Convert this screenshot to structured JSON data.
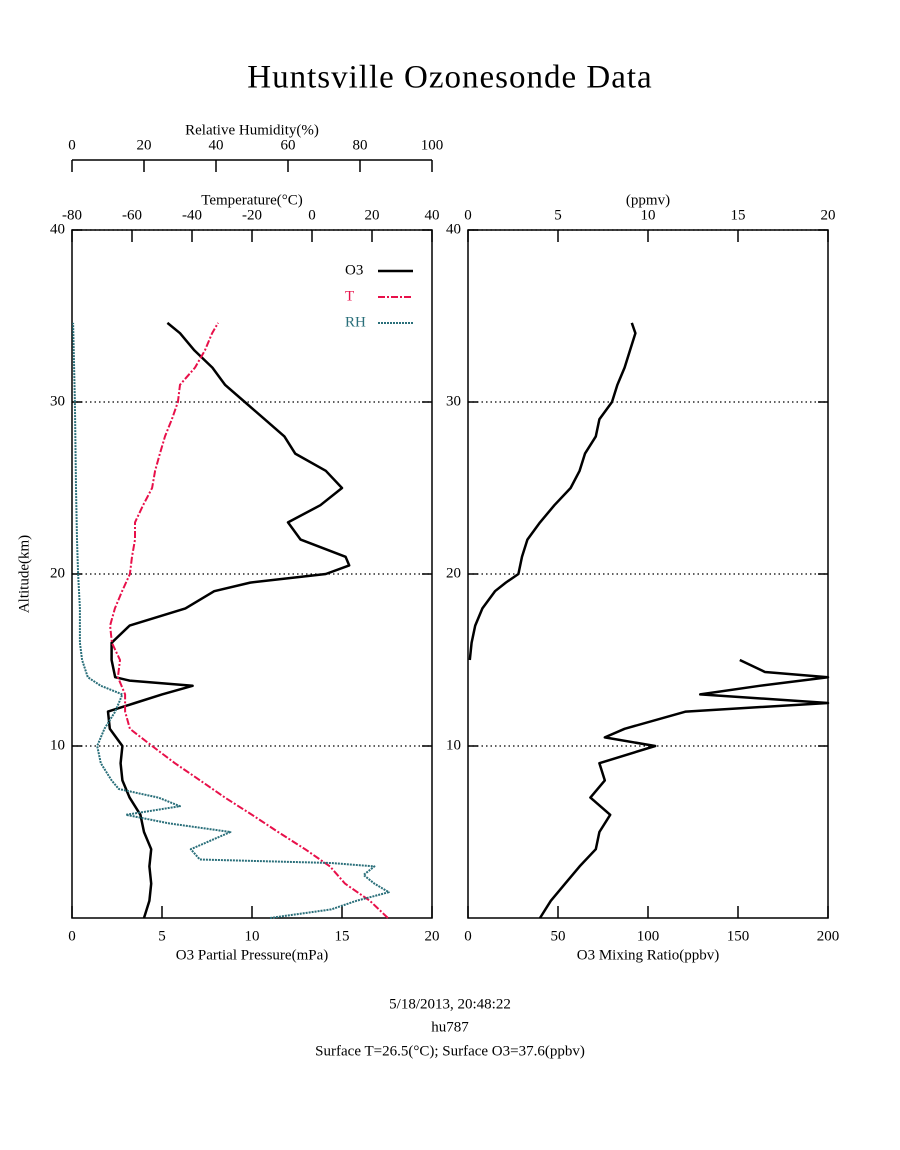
{
  "chart_data": [
    {
      "type": "line",
      "title": "Huntsville Ozonesonde Data",
      "ylabel": "Altitude(km)",
      "ylim": [
        0,
        40
      ],
      "yticks": [
        10,
        20,
        30,
        40
      ],
      "grid": true,
      "legend": "upper right",
      "x_axes": [
        {
          "label": "O3 Partial Pressure(mPa)",
          "xlim": [
            0,
            20
          ],
          "xticks": [
            0,
            5,
            10,
            15,
            20
          ]
        },
        {
          "label": "Temperature(°C)",
          "xlim": [
            -80,
            40
          ],
          "xticks": [
            -80,
            -60,
            -40,
            -20,
            0,
            20,
            40
          ]
        },
        {
          "label": "Relative Humidity(%)",
          "xlim": [
            0,
            100
          ],
          "xticks": [
            0,
            20,
            40,
            60,
            80,
            100
          ]
        }
      ],
      "series": [
        {
          "name": "O3",
          "color": "#000000",
          "axis": 0,
          "y": [
            0,
            1,
            2,
            3,
            4,
            5,
            6,
            7,
            8,
            9,
            10,
            11,
            12,
            12.5,
            13,
            13.5,
            13.8,
            14,
            15,
            16,
            17,
            18,
            19,
            19.5,
            20,
            20.5,
            21,
            22,
            23,
            24,
            25,
            26,
            27,
            28,
            29,
            30,
            31,
            32,
            33,
            34,
            34.6
          ],
          "values": [
            4.0,
            4.3,
            4.4,
            4.3,
            4.4,
            4.0,
            3.8,
            3.2,
            2.8,
            2.7,
            2.8,
            2.1,
            2.0,
            3.5,
            5.0,
            6.7,
            3.2,
            2.4,
            2.2,
            2.2,
            3.2,
            6.3,
            7.9,
            9.9,
            14.1,
            15.4,
            15.2,
            12.7,
            12.0,
            13.8,
            15.0,
            14.1,
            12.4,
            11.8,
            10.7,
            9.6,
            8.5,
            7.8,
            6.8,
            6.0,
            5.3
          ]
        },
        {
          "name": "T",
          "color": "#e8104a",
          "axis": 1,
          "y": [
            0,
            1,
            2,
            3,
            4,
            5,
            6,
            7,
            8,
            9,
            10,
            11,
            12,
            13,
            14,
            15,
            16,
            17,
            18,
            19,
            20,
            21,
            22,
            23,
            24,
            25,
            26,
            27,
            28,
            29,
            30,
            31,
            32,
            33,
            34,
            34.6
          ],
          "values": [
            25.3,
            19.3,
            11,
            6,
            -2.3,
            -11.3,
            -20,
            -29,
            -37.3,
            -45.7,
            -53.3,
            -60.7,
            -62.3,
            -62.3,
            -64.7,
            -64,
            -66.7,
            -67.3,
            -65.7,
            -63.3,
            -60.7,
            -60,
            -59,
            -59,
            -56.3,
            -53.3,
            -52.3,
            -50.7,
            -49,
            -46.7,
            -44.7,
            -44,
            -39,
            -35.7,
            -33.3,
            -31.3
          ]
        },
        {
          "name": "RH",
          "color": "#2a6f7a",
          "axis": 2,
          "y": [
            0,
            0.5,
            1,
            1.5,
            2,
            2.5,
            3,
            3.2,
            3.4,
            4,
            5,
            5.5,
            6,
            6.5,
            7,
            7.5,
            8,
            9,
            10,
            11,
            12,
            13,
            13.5,
            14,
            15,
            16,
            18,
            20,
            22,
            25,
            30,
            34.6
          ],
          "values": [
            55,
            72,
            79,
            88,
            84,
            81,
            84,
            72,
            35.5,
            33,
            44,
            27,
            15,
            30,
            24,
            13,
            11,
            8,
            7,
            9,
            12,
            14,
            8,
            4.4,
            2.8,
            2.2,
            2.2,
            1.7,
            1.4,
            1.1,
            0.8,
            0.3
          ]
        }
      ]
    },
    {
      "type": "line",
      "ylim": [
        0,
        40
      ],
      "yticks": [
        10,
        20,
        30,
        40
      ],
      "grid": true,
      "x_axes": [
        {
          "label": "O3 Mixing Ratio(ppbv)",
          "xlim": [
            0,
            200
          ],
          "xticks": [
            0,
            50,
            100,
            150,
            200
          ]
        },
        {
          "label": "(ppmv)",
          "xlim": [
            0,
            20
          ],
          "xticks": [
            0,
            5,
            10,
            15,
            20
          ]
        }
      ],
      "series": [
        {
          "color": "#000000",
          "axis": 0,
          "y": [
            0,
            1,
            2,
            3,
            4,
            5,
            6,
            7,
            8,
            9,
            10,
            10.5,
            11,
            12,
            12.5,
            13,
            13.5,
            14,
            14.3,
            15,
            15,
            15,
            16,
            17,
            18,
            19,
            19.5,
            20,
            21,
            22,
            23,
            24,
            25,
            26,
            27,
            28,
            29,
            30,
            31,
            32,
            33,
            34,
            34.6
          ],
          "values": [
            40,
            46,
            54,
            62,
            71,
            73,
            79,
            68,
            76,
            73,
            104,
            76,
            87,
            121,
            200,
            129,
            162,
            200,
            165,
            151,
            null,
            1,
            2,
            4,
            8,
            15,
            21,
            28,
            30,
            33,
            40,
            48,
            57,
            62,
            65,
            71,
            73,
            80,
            83,
            87,
            90,
            93,
            91
          ]
        }
      ]
    }
  ],
  "footer": [
    "5/18/2013, 20:48:22",
    "hu787",
    "Surface T=26.5(°C); Surface O3=37.6(ppbv)"
  ]
}
